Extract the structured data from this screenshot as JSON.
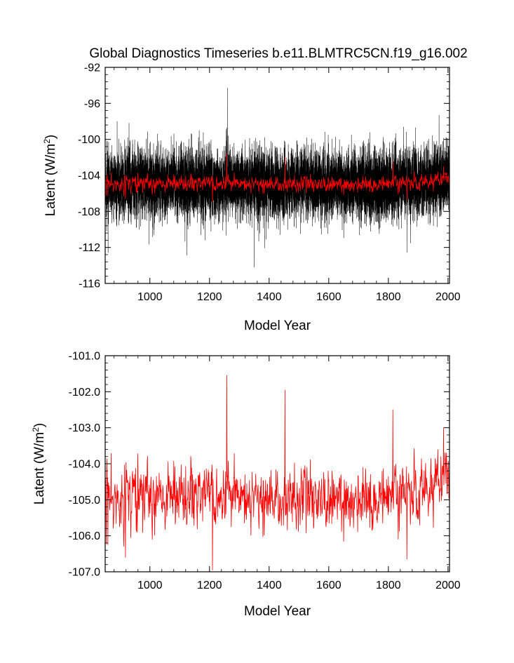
{
  "title": "Global Diagnostics Timeseries b.e11.BLMTRC5CN.f19_g16.002",
  "colors": {
    "monthly": "#000000",
    "annual": "#ff0000",
    "axis": "#000000",
    "background": "#ffffff"
  },
  "chart_data": [
    {
      "type": "line",
      "panel": "top",
      "xlabel": "Model Year",
      "ylabel_main": "Latent (W/m",
      "ylabel_sup": "2",
      "ylabel_close": ")",
      "xlim": [
        850,
        2005
      ],
      "ylim": [
        -116,
        -92
      ],
      "xticks": [
        1000,
        1200,
        1400,
        1600,
        1800,
        2000
      ],
      "xtick_labels": [
        "1000",
        "1200",
        "1400",
        "1600",
        "1800",
        "2000"
      ],
      "yticks": [
        -92,
        -96,
        -100,
        -104,
        -108,
        -112,
        -116
      ],
      "ytick_labels": [
        "-92",
        "-96",
        "-100",
        "-104",
        "-108",
        "-112",
        "-116"
      ],
      "series": [
        {
          "name": "monthly",
          "color": "#000000",
          "x_start": 850,
          "x_end": 2005,
          "n_points": 13860,
          "center": -105.0,
          "envelope": [
            -114,
            -98
          ],
          "peaks": [
            {
              "x": 1260,
              "y": -94.3
            },
            {
              "x": 1350,
              "y": -114.2
            },
            {
              "x": 1970,
              "y": -97.3
            }
          ]
        },
        {
          "name": "annual",
          "color": "#ff0000",
          "x_start": 850,
          "x_end": 2005,
          "n_points": 1156,
          "range": [
            -107.0,
            -101.5
          ]
        }
      ]
    },
    {
      "type": "line",
      "panel": "bottom",
      "xlabel": "Model Year",
      "ylabel_main": "Latent (W/m",
      "ylabel_sup": "2",
      "ylabel_close": ")",
      "xlim": [
        850,
        2005
      ],
      "ylim": [
        -107.0,
        -101.0
      ],
      "xticks": [
        1000,
        1200,
        1400,
        1600,
        1800,
        2000
      ],
      "xtick_labels": [
        "1000",
        "1200",
        "1400",
        "1600",
        "1800",
        "2000"
      ],
      "yticks": [
        -101.0,
        -102.0,
        -103.0,
        -104.0,
        -105.0,
        -106.0,
        -107.0
      ],
      "ytick_labels": [
        "-101.0",
        "-102.0",
        "-103.0",
        "-104.0",
        "-105.0",
        "-106.0",
        "-107.0"
      ],
      "series": [
        {
          "name": "annual",
          "color": "#ff0000",
          "x_start": 850,
          "x_end": 2005,
          "n_points": 1156,
          "mean": -104.95,
          "peaks": [
            {
              "x": 1258,
              "y": -101.55
            },
            {
              "x": 1453,
              "y": -101.95
            },
            {
              "x": 1815,
              "y": -102.5
            },
            {
              "x": 1210,
              "y": -106.95
            },
            {
              "x": 1862,
              "y": -106.65
            },
            {
              "x": 918,
              "y": -106.6
            },
            {
              "x": 1985,
              "y": -103.0
            }
          ]
        }
      ]
    }
  ]
}
